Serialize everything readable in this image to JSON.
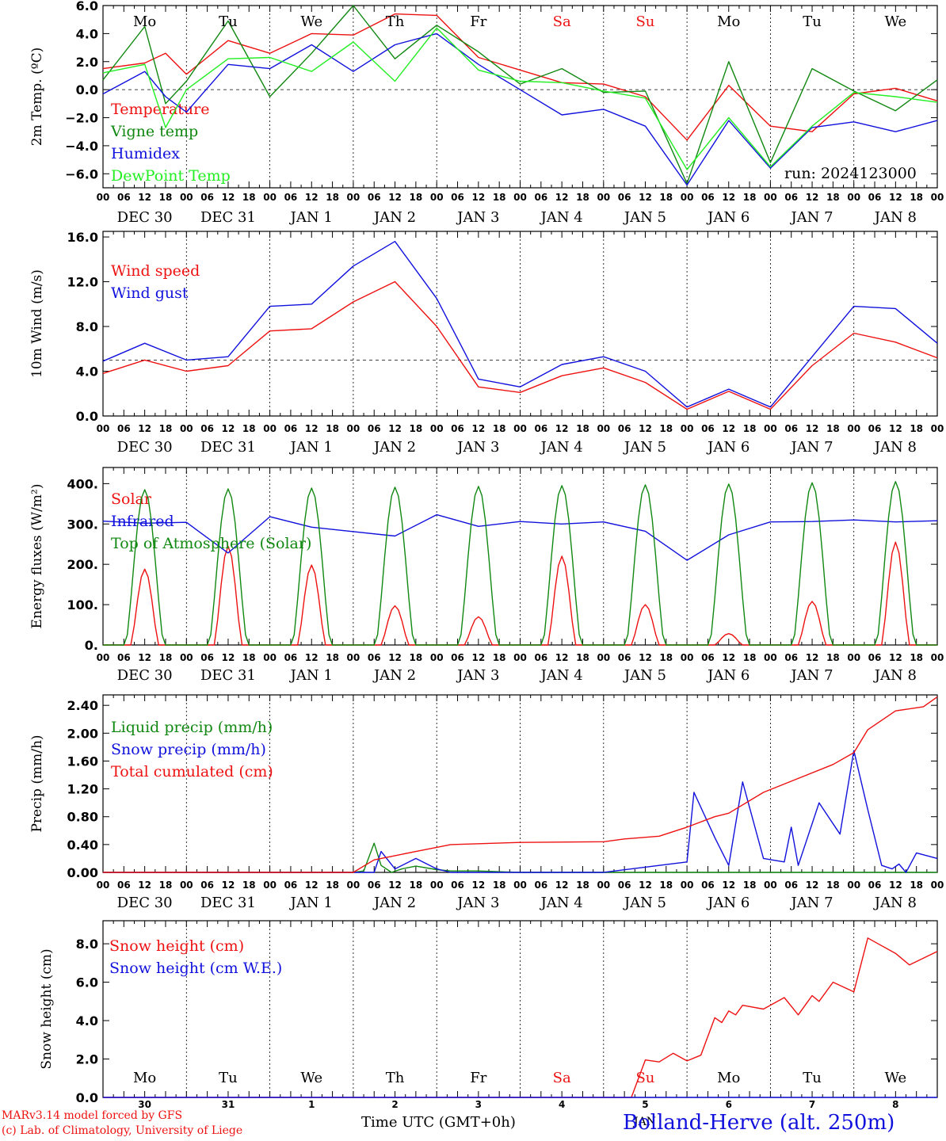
{
  "meta": {
    "run_label": "run: 2024123000",
    "credit_line_1": "MARv3.14 model forced by GFS",
    "credit_line_2": "(c) Lab. of Climatology, University of Liege",
    "location": "Bolland-Herve (alt. 250m)",
    "time_axis_label": "Time UTC (GMT+0h)",
    "colors": {
      "red": "#ee1111",
      "green": "#118811",
      "blue": "#1111dd",
      "lime": "#22ee22",
      "weekend": "#ee1111"
    }
  },
  "weekdays": [
    "Mo",
    "Tu",
    "We",
    "Th",
    "Fr",
    "Sa",
    "Su",
    "Mo",
    "Tu",
    "We"
  ],
  "weekend_flags": [
    false,
    false,
    false,
    false,
    false,
    true,
    true,
    false,
    false,
    false
  ],
  "dates": [
    "DEC 30",
    "DEC 31",
    "JAN  1",
    "JAN  2",
    "JAN  3",
    "JAN  4",
    "JAN  5",
    "JAN  6",
    "JAN  7",
    "JAN  8"
  ],
  "hour_ticks": [
    "00",
    "06",
    "12",
    "18"
  ],
  "snow_day_numbers": [
    "30",
    "31",
    "1",
    "2",
    "3",
    "4",
    "5",
    "6",
    "7",
    "8"
  ],
  "snow_bottom_text": "JAN",
  "chart_data": [
    {
      "type": "line",
      "ylabel": "2m Temp. (ºC)",
      "ylim": [
        -7,
        6
      ],
      "yticks": [
        6.0,
        4.0,
        2.0,
        0.0,
        -2.0,
        -4.0,
        -6.0
      ],
      "ytick_labels": [
        "6.0",
        "4.0",
        "2.0",
        "0.0",
        "−2.0",
        "−4.0",
        "−6.0"
      ],
      "ref_line": 0,
      "x_unit": "hours since DEC 30 00 UTC",
      "series": [
        {
          "name": "Temperature",
          "color": "red",
          "x": [
            0,
            12,
            18,
            24,
            36,
            48,
            60,
            72,
            84,
            96,
            108,
            120,
            132,
            144,
            156,
            168,
            180,
            192,
            204,
            216,
            228,
            240
          ],
          "values": [
            1.5,
            1.9,
            2.6,
            1.1,
            3.5,
            2.6,
            4.0,
            3.9,
            5.4,
            5.3,
            2.3,
            1.4,
            0.5,
            0.4,
            -0.5,
            -3.6,
            0.3,
            -2.6,
            -3.0,
            -0.3,
            0.1,
            -0.8
          ]
        },
        {
          "name": "Vigne temp",
          "color": "green",
          "x": [
            0,
            12,
            18,
            24,
            36,
            48,
            60,
            72,
            84,
            96,
            108,
            120,
            132,
            144,
            156,
            168,
            180,
            192,
            204,
            216,
            228,
            240
          ],
          "values": [
            0.7,
            4.5,
            -1.0,
            0.6,
            4.9,
            -0.5,
            2.6,
            6.0,
            2.2,
            4.6,
            2.7,
            0.4,
            1.5,
            -0.2,
            -0.1,
            -6.7,
            2.0,
            -5.2,
            1.5,
            -0.1,
            -1.5,
            0.7
          ]
        },
        {
          "name": "Humidex",
          "color": "blue",
          "x": [
            0,
            12,
            18,
            24,
            36,
            48,
            60,
            72,
            84,
            96,
            108,
            120,
            132,
            144,
            156,
            168,
            180,
            192,
            204,
            216,
            228,
            240
          ],
          "values": [
            -0.3,
            1.3,
            -0.5,
            -1.6,
            1.8,
            1.5,
            3.2,
            1.3,
            3.2,
            4.0,
            1.8,
            0.0,
            -1.8,
            -1.4,
            -2.6,
            -6.8,
            -2.2,
            -5.6,
            -2.7,
            -2.3,
            -3.0,
            -2.2
          ]
        },
        {
          "name": "DewPoint Temp",
          "color": "lime",
          "x": [
            0,
            12,
            18,
            24,
            36,
            48,
            60,
            72,
            84,
            96,
            108,
            120,
            132,
            144,
            156,
            168,
            180,
            192,
            204,
            216,
            228,
            240
          ],
          "values": [
            1.2,
            1.8,
            -2.7,
            0.0,
            2.2,
            2.3,
            1.3,
            3.4,
            0.6,
            4.4,
            1.4,
            0.6,
            0.5,
            -0.1,
            -0.6,
            -5.7,
            -2.0,
            -5.5,
            -2.6,
            -0.2,
            -0.5,
            -0.9
          ]
        }
      ]
    },
    {
      "type": "line",
      "ylabel": "10m Wind (m/s)",
      "ylim": [
        0,
        16.5
      ],
      "yticks": [
        16.0,
        12.0,
        8.0,
        4.0,
        0.0
      ],
      "ytick_labels": [
        "16.0",
        "12.0",
        "8.0",
        "4.0",
        "0.0"
      ],
      "ref_line": 5,
      "x_unit": "hours since DEC 30 00 UTC",
      "series": [
        {
          "name": "Wind speed",
          "color": "red",
          "x": [
            0,
            12,
            24,
            36,
            48,
            60,
            72,
            84,
            96,
            108,
            120,
            132,
            144,
            156,
            168,
            180,
            192,
            204,
            216,
            228,
            240
          ],
          "values": [
            3.8,
            5.0,
            4.0,
            4.5,
            7.6,
            7.8,
            10.2,
            12.0,
            8.0,
            2.6,
            2.1,
            3.6,
            4.3,
            3.0,
            0.6,
            2.2,
            0.6,
            4.5,
            7.4,
            6.6,
            5.2
          ]
        },
        {
          "name": "Wind gust",
          "color": "blue",
          "x": [
            0,
            12,
            24,
            36,
            48,
            60,
            72,
            84,
            96,
            108,
            120,
            132,
            144,
            156,
            168,
            180,
            192,
            204,
            216,
            228,
            240
          ],
          "values": [
            4.9,
            6.5,
            5.0,
            5.3,
            9.8,
            10.0,
            13.4,
            15.6,
            10.5,
            3.3,
            2.6,
            4.6,
            5.3,
            4.0,
            0.8,
            2.4,
            0.8,
            5.3,
            9.8,
            9.6,
            6.5
          ]
        }
      ]
    },
    {
      "type": "line",
      "ylabel": "Energy fluxes (W/m²)",
      "ylim": [
        0,
        440
      ],
      "yticks": [
        400,
        300,
        200,
        100,
        0
      ],
      "ytick_labels": [
        "400.",
        "300.",
        "200.",
        "100.",
        "0."
      ],
      "x_unit": "hours since DEC 30 00 UTC",
      "series": [
        {
          "name": "Solar",
          "color": "red",
          "day_peaks": [
            188,
            245,
            198,
            97,
            70,
            220,
            100,
            28,
            108,
            255
          ]
        },
        {
          "name": "Infrared",
          "color": "blue",
          "x": [
            0,
            12,
            24,
            36,
            48,
            60,
            72,
            84,
            96,
            108,
            120,
            132,
            144,
            156,
            168,
            180,
            192,
            204,
            216,
            228,
            240
          ],
          "values": [
            307,
            302,
            304,
            228,
            318,
            292,
            281,
            270,
            323,
            294,
            306,
            300,
            305,
            282,
            210,
            273,
            305,
            306,
            310,
            305,
            308
          ]
        },
        {
          "name": "Top of Atmosphere (Solar)",
          "color": "green",
          "day_peaks": [
            385,
            387,
            389,
            391,
            393,
            395,
            397,
            399,
            402,
            405
          ]
        }
      ]
    },
    {
      "type": "line",
      "ylabel": "Precip (mm/h)",
      "ylim": [
        0,
        2.55
      ],
      "yticks": [
        2.4,
        2.0,
        1.6,
        1.2,
        0.8,
        0.4,
        0.0
      ],
      "ytick_labels": [
        "2.40",
        "2.00",
        "1.60",
        "1.20",
        "0.80",
        "0.40",
        "0.00"
      ],
      "x_unit": "hours since DEC 30 00 UTC",
      "series": [
        {
          "name": "Liquid precip (mm/h)",
          "color": "green",
          "x": [
            0,
            72,
            75,
            78,
            80,
            83,
            86,
            90,
            96,
            100,
            108,
            120,
            168,
            240
          ],
          "values": [
            0,
            0,
            0.02,
            0.42,
            0.1,
            0.0,
            0.05,
            0.09,
            0.04,
            0.02,
            0.02,
            0.0,
            0.0,
            0.0
          ]
        },
        {
          "name": "Snow precip (mm/h)",
          "color": "blue",
          "x": [
            0,
            78,
            80,
            84,
            90,
            96,
            100,
            144,
            168,
            170,
            176,
            180,
            184,
            190,
            196,
            198,
            200,
            206,
            212,
            216,
            220,
            224,
            227,
            229,
            231,
            234,
            240
          ],
          "values": [
            0,
            0,
            0.3,
            0.05,
            0.2,
            0.05,
            0,
            0,
            0.15,
            1.15,
            0.5,
            0.1,
            1.3,
            0.2,
            0.15,
            0.65,
            0.1,
            1.0,
            0.55,
            1.75,
            0.9,
            0.1,
            0.05,
            0.12,
            0.0,
            0.28,
            0.2
          ]
        },
        {
          "name": "Total cumulated (cm)",
          "color": "red",
          "x": [
            0,
            72,
            78,
            84,
            90,
            96,
            100,
            120,
            144,
            150,
            160,
            168,
            176,
            180,
            190,
            200,
            210,
            216,
            220,
            228,
            236,
            240
          ],
          "values": [
            0,
            0.0,
            0.18,
            0.24,
            0.3,
            0.36,
            0.4,
            0.43,
            0.44,
            0.48,
            0.52,
            0.65,
            0.8,
            0.85,
            1.15,
            1.35,
            1.55,
            1.72,
            2.05,
            2.32,
            2.38,
            2.52
          ]
        }
      ]
    },
    {
      "type": "line",
      "ylabel": "Snow height (cm)",
      "ylim": [
        0,
        9.2
      ],
      "yticks": [
        8.0,
        6.0,
        4.0,
        2.0,
        0.0
      ],
      "ytick_labels": [
        "8.0",
        "6.0",
        "4.0",
        "2.0",
        "0.0"
      ],
      "x_unit": "hours since DEC 30 00 UTC",
      "series": [
        {
          "name": "Snow height (cm)",
          "color": "red",
          "x": [
            0,
            150,
            152,
            156,
            160,
            164,
            168,
            172,
            176,
            178,
            180,
            182,
            184,
            190,
            196,
            200,
            204,
            206,
            210,
            216,
            220,
            222,
            228,
            232,
            240
          ],
          "values": [
            0,
            0,
            0,
            1.95,
            1.85,
            2.3,
            1.9,
            2.2,
            4.15,
            3.9,
            4.5,
            4.3,
            4.8,
            4.6,
            5.2,
            4.3,
            5.3,
            5.0,
            6.0,
            5.5,
            8.3,
            8.1,
            7.5,
            6.9,
            7.6
          ]
        },
        {
          "name": "Snow height (cm W.E.)",
          "color": "blue",
          "x": [
            0,
            240
          ],
          "values": [
            0,
            0
          ]
        }
      ]
    }
  ]
}
